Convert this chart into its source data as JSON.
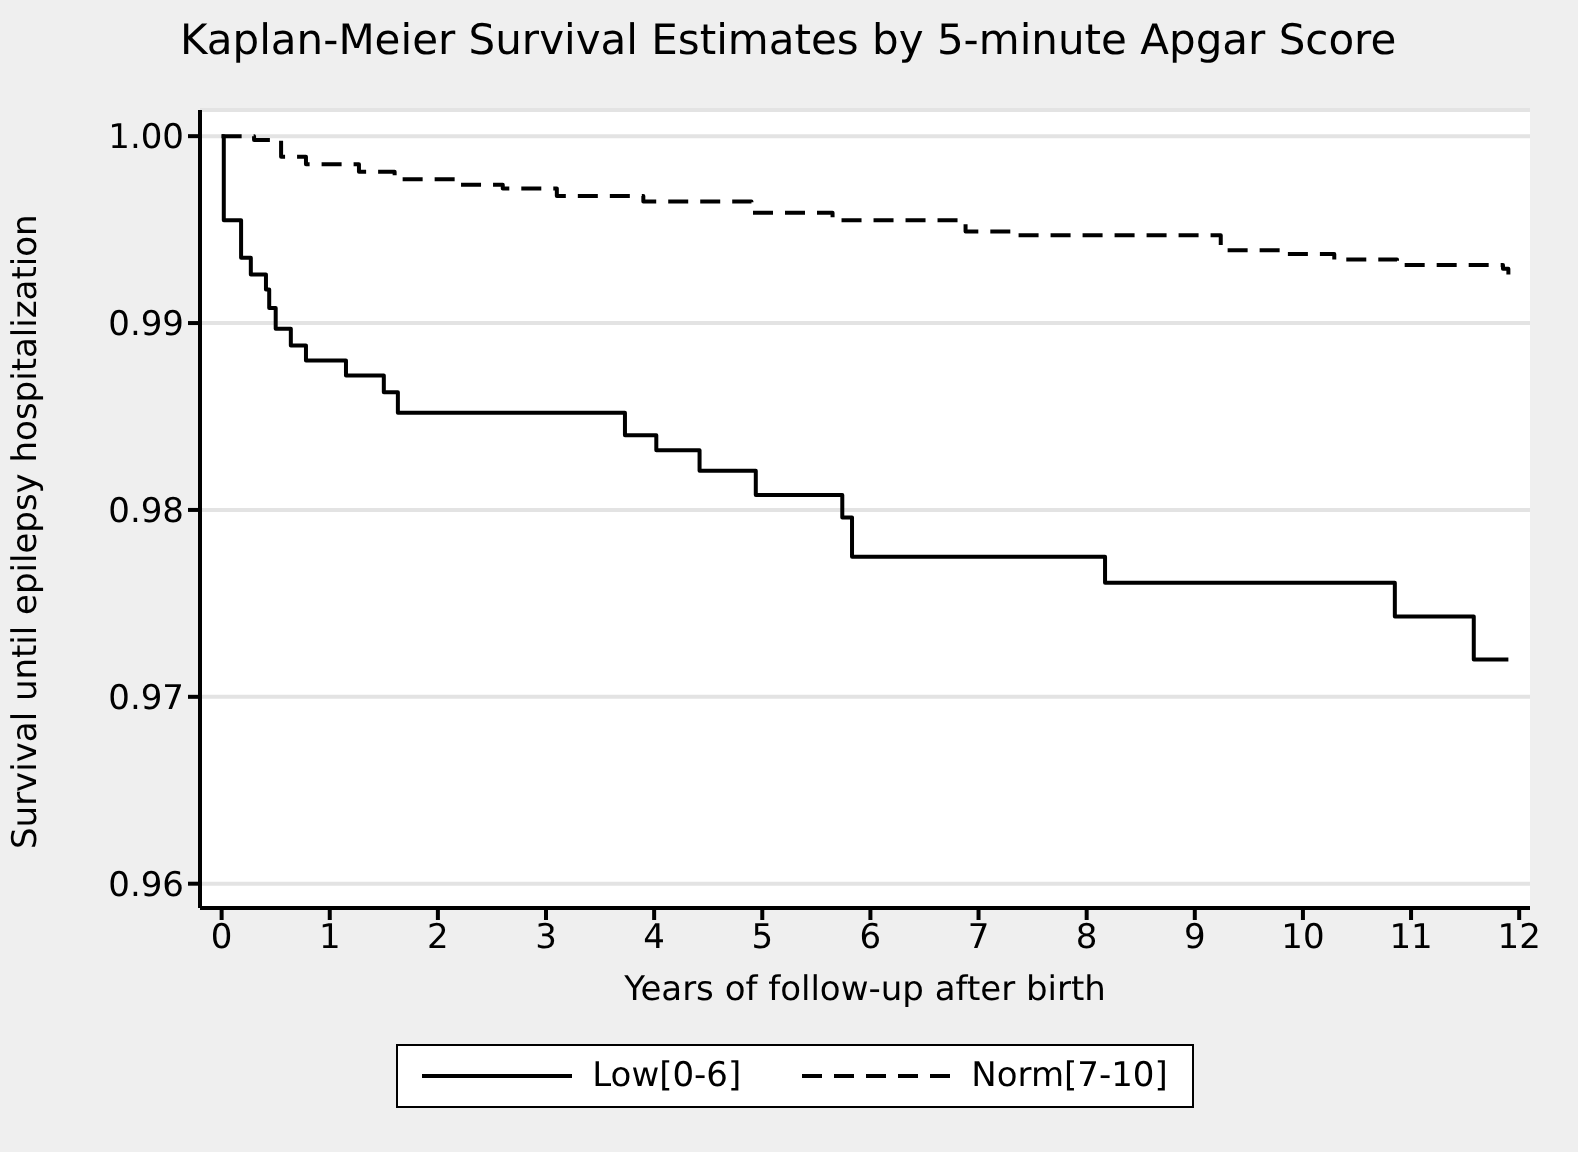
{
  "chart_data": {
    "type": "step",
    "title": "Kaplan-Meier Survival Estimates by 5-minute Apgar Score",
    "xlabel": "Years of follow-up after birth",
    "ylabel": "Survival until epilepsy hospitalization",
    "xlim": [
      -0.2,
      12.1
    ],
    "xticks": [
      0,
      1,
      2,
      3,
      4,
      5,
      6,
      7,
      8,
      9,
      10,
      11,
      12
    ],
    "ylim": [
      0.9587,
      1.0014
    ],
    "yticks": [
      {
        "value": 0.96,
        "label": "0.96"
      },
      {
        "value": 0.97,
        "label": "0.97"
      },
      {
        "value": 0.98,
        "label": "0.98"
      },
      {
        "value": 0.99,
        "label": "0.99"
      },
      {
        "value": 1.0,
        "label": "1.00"
      }
    ],
    "grid": "y",
    "legend": "bottom",
    "series": [
      {
        "name": "Low[0-6]",
        "color": "#000000",
        "line_style": "solid",
        "x": [
          0,
          0.02,
          0.18,
          0.27,
          0.41,
          0.44,
          0.5,
          0.64,
          0.78,
          1.15,
          1.5,
          1.63,
          3.73,
          4.02,
          4.42,
          4.94,
          5.74,
          5.83,
          8.17,
          10.85,
          11.58,
          11.9
        ],
        "values": [
          1.0,
          0.9955,
          0.9935,
          0.9926,
          0.9918,
          0.9908,
          0.9897,
          0.9888,
          0.988,
          0.9872,
          0.9863,
          0.9852,
          0.984,
          0.9832,
          0.9821,
          0.9808,
          0.9796,
          0.9775,
          0.9761,
          0.9743,
          0.972,
          0.972
        ]
      },
      {
        "name": "Norm[7-10]",
        "color": "#000000",
        "line_style": "dashed",
        "x": [
          0,
          0.3,
          0.55,
          0.78,
          1.27,
          1.6,
          2.2,
          2.6,
          3.1,
          3.9,
          4.9,
          5.65,
          6.88,
          7.34,
          9.24,
          9.79,
          10.29,
          10.87,
          11.85,
          11.9
        ],
        "values": [
          1.0,
          0.9998,
          0.9989,
          0.9985,
          0.9981,
          0.9977,
          0.9974,
          0.9972,
          0.9968,
          0.9965,
          0.9959,
          0.9955,
          0.9949,
          0.9947,
          0.9939,
          0.9937,
          0.9934,
          0.9931,
          0.9929,
          0.9926
        ]
      }
    ]
  }
}
